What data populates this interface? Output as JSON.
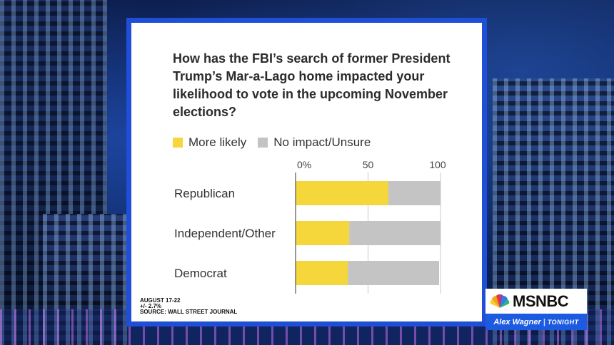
{
  "title": "How has the FBI’s search of former President Trump’s Mar-a-Lago home impacted your likelihood to vote in the upcoming November elections?",
  "source": {
    "date": "AUGUST 17-22",
    "margin": "+/- 2.7%",
    "credit": "SOURCE: WALL STREET JOURNAL"
  },
  "branding": {
    "network": "MSNBC",
    "host": "Alex Wagner",
    "show": "TONIGHT",
    "separator": "|"
  },
  "colors": {
    "more_likely": "#f5d63b",
    "no_impact": "#c4c4c4",
    "frame": "#1f4fd6",
    "show_bar": "#1c5be0"
  },
  "chart_data": {
    "type": "bar",
    "orientation": "horizontal",
    "stacked": true,
    "title": "How has the FBI’s search of former President Trump’s Mar-a-Lago home impacted your likelihood to vote in the upcoming November elections?",
    "categories": [
      "Republican",
      "Independent/Other",
      "Democrat"
    ],
    "series": [
      {
        "name": "More likely",
        "values": [
          64,
          37,
          36
        ],
        "color": "#f5d63b"
      },
      {
        "name": "No impact/Unsure",
        "values": [
          36,
          63,
          63
        ],
        "color": "#c4c4c4"
      }
    ],
    "xlim": [
      0,
      100
    ],
    "xticks": [
      0,
      50,
      100
    ],
    "xtick_labels": [
      "0%",
      "50",
      "100"
    ],
    "legend_position": "top-left",
    "grid": true
  }
}
